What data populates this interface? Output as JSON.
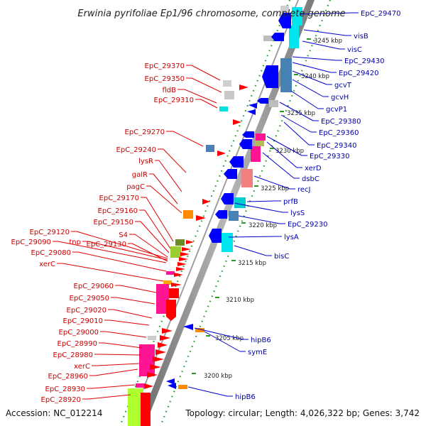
{
  "title": "Erwinia pyrifoliae Ep1/96 chromosome, complete genome",
  "footer": {
    "accession": "Accession: NC_012214",
    "summary": "Topology: circular; Length: 4,026,322 bp; Genes: 3,742"
  },
  "ticks": [
    "3245 kbp",
    "3240 kbp",
    "3235 kbp",
    "3230 kbp",
    "3225 kbp",
    "3220 kbp",
    "3215 kbp",
    "3210 kbp",
    "3205 kbp",
    "3200 kbp"
  ],
  "left_labels": [
    "EpC_29370",
    "EpC_29350",
    "fldB",
    "EpC_29310",
    "EpC_29270",
    "EpC_29240",
    "lysR",
    "galR",
    "pagC",
    "EpC_29170",
    "EpC_29160",
    "EpC_29150",
    "S4",
    "EpC_29120",
    "tnp",
    "EpC_29090",
    "EpC_29130",
    "EpC_29080",
    "xerC",
    "EpC_29060",
    "EpC_29050",
    "EpC_29020",
    "EpC_29010",
    "EpC_29000",
    "EpC_28990",
    "EpC_28980",
    "xerC",
    "EpC_28960",
    "EpC_28930",
    "EpC_28920"
  ],
  "right_labels": [
    "EpC_29470",
    "visB",
    "visC",
    "EpC_29430",
    "EpC_29420",
    "gcvT",
    "gcvH",
    "gcvP1",
    "EpC_29380",
    "EpC_29360",
    "EpC_29340",
    "EpC_29330",
    "xerD",
    "dsbC",
    "recJ",
    "prfB",
    "lysS",
    "EpC_29230",
    "lysA",
    "bisC",
    "hipB6",
    "symE",
    "hipB6"
  ],
  "colors": {
    "forward_cds": "#ff0000",
    "reverse_cds": "#0000ff",
    "backbone": "#888888",
    "tick_marks": "#2a9a2a",
    "left_label": "#cc0000",
    "right_label": "#0000aa"
  }
}
